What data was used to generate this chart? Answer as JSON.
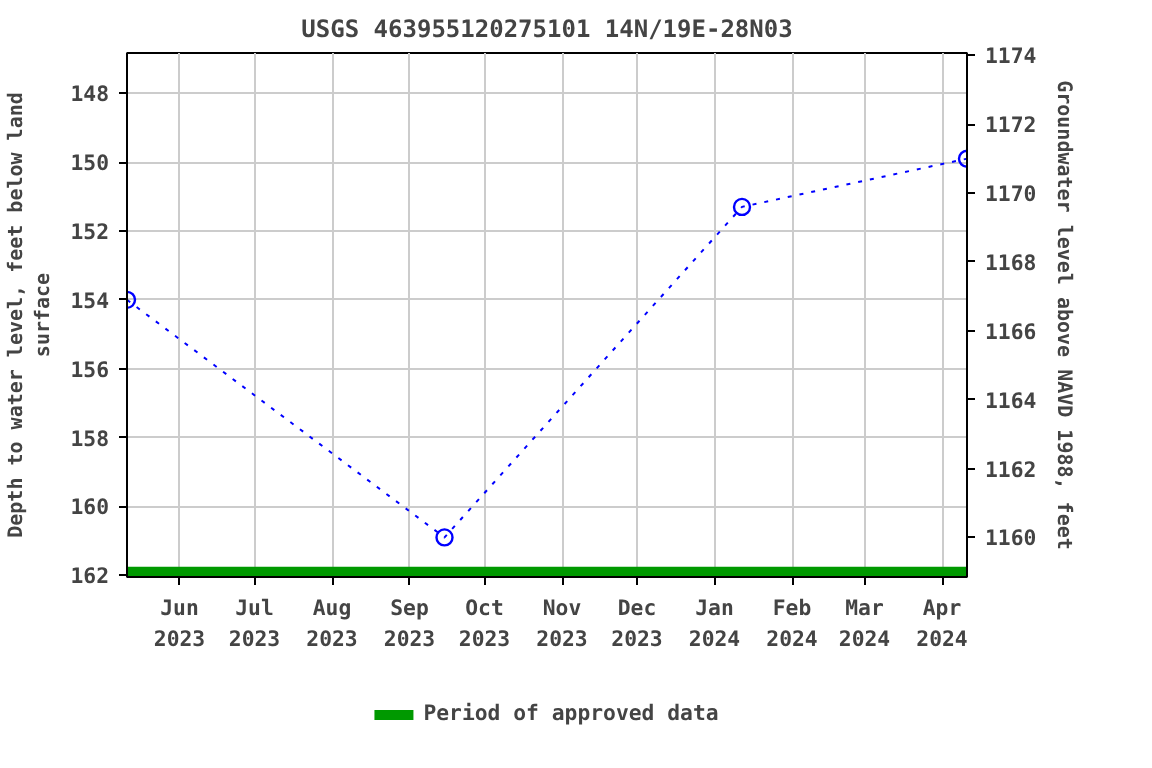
{
  "chart_data": {
    "type": "line",
    "title": "USGS 463955120275101 14N/19E-28N03",
    "ylabel": "Depth to water level, feet below land surface",
    "y2label": "Groundwater level above NAVD 1988, feet",
    "xlim": [
      "2023-05-11",
      "2024-04-11"
    ],
    "xticks": [
      {
        "value": "2023-06-01",
        "label": "Jun\n2023"
      },
      {
        "value": "2023-07-01",
        "label": "Jul\n2023"
      },
      {
        "value": "2023-08-01",
        "label": "Aug\n2023"
      },
      {
        "value": "2023-09-01",
        "label": "Sep\n2023"
      },
      {
        "value": "2023-10-01",
        "label": "Oct\n2023"
      },
      {
        "value": "2023-11-01",
        "label": "Nov\n2023"
      },
      {
        "value": "2023-12-01",
        "label": "Dec\n2023"
      },
      {
        "value": "2024-01-01",
        "label": "Jan\n2024"
      },
      {
        "value": "2024-02-01",
        "label": "Feb\n2024"
      },
      {
        "value": "2024-03-01",
        "label": "Mar\n2024"
      },
      {
        "value": "2024-04-01",
        "label": "Apr\n2024"
      }
    ],
    "ylim": [
      162.05,
      146.83
    ],
    "yticks": [
      148,
      150,
      152,
      154,
      156,
      158,
      160,
      162
    ],
    "y2lim": [
      1158.85,
      1174.07
    ],
    "y2ticks": [
      1160,
      1162,
      1164,
      1166,
      1168,
      1170,
      1172,
      1174
    ],
    "grid": true,
    "legend": "bottom",
    "series": [
      {
        "color": "#0000ff",
        "marker": "circle",
        "line_style": "dotted",
        "x": [
          "2023-05-11",
          "2023-09-15",
          "2024-01-12",
          "2024-04-11"
        ],
        "values": [
          154.0,
          160.9,
          151.3,
          149.9
        ]
      },
      {
        "name": "Period of approved data",
        "color": "#009900",
        "marker": "none",
        "line_style": "solid",
        "x": [
          "2023-05-11",
          "2024-04-11"
        ],
        "values": [
          161.9,
          161.9
        ]
      }
    ]
  }
}
